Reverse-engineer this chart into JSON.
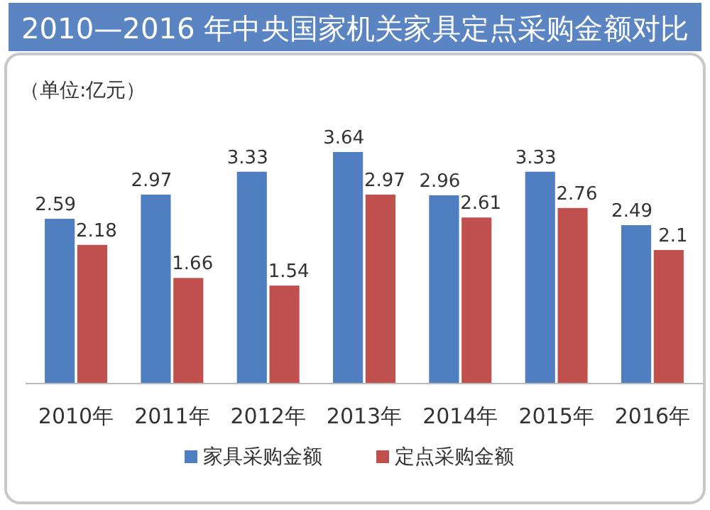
{
  "chart_data": {
    "type": "bar",
    "title": "2010—2016 年中央国家机关家具定点采购金额对比",
    "annotations": [
      "（单位:亿元）"
    ],
    "categories": [
      "2010年",
      "2011年",
      "2012年",
      "2013年",
      "2014年",
      "2015年",
      "2016年"
    ],
    "series": [
      {
        "name": "家具采购金额",
        "color": "#4f7fc1",
        "values": [
          2.59,
          2.97,
          3.33,
          3.64,
          2.96,
          3.33,
          2.49
        ]
      },
      {
        "name": "定点采购金额",
        "color": "#c0504d",
        "values": [
          2.18,
          1.66,
          1.54,
          2.97,
          2.61,
          2.76,
          2.1
        ]
      }
    ],
    "data_labels": true,
    "legend": "bottom"
  }
}
